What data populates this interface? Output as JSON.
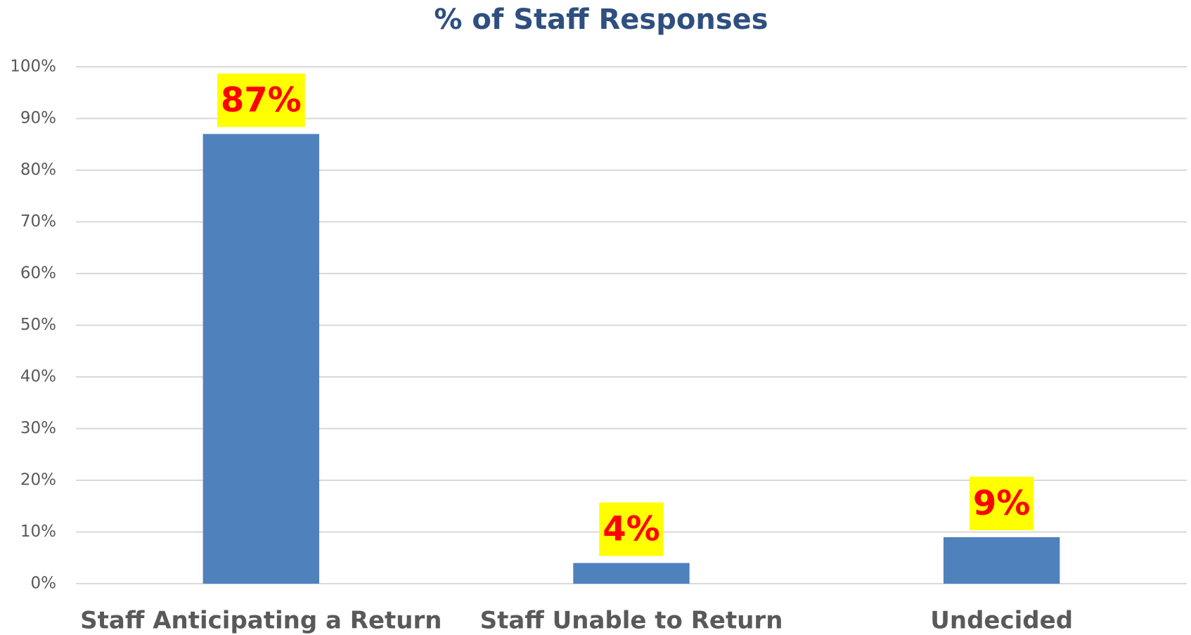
{
  "chart_data": {
    "type": "bar",
    "title": "% of Staff Responses",
    "categories": [
      "Staff Anticipating a Return",
      "Staff Unable to Return",
      "Undecided"
    ],
    "values": [
      87,
      4,
      9
    ],
    "value_labels": [
      "87%",
      "4%",
      "9%"
    ],
    "color": "#4f81bd",
    "ylim": [
      0,
      100
    ],
    "yticks": [
      {
        "value": 0,
        "label": "0%"
      },
      {
        "value": 10,
        "label": "10%"
      },
      {
        "value": 20,
        "label": "20%"
      },
      {
        "value": 30,
        "label": "30%"
      },
      {
        "value": 40,
        "label": "40%"
      },
      {
        "value": 50,
        "label": "50%"
      },
      {
        "value": 60,
        "label": "60%"
      },
      {
        "value": 70,
        "label": "70%"
      },
      {
        "value": 80,
        "label": "80%"
      },
      {
        "value": 90,
        "label": "90%"
      },
      {
        "value": 100,
        "label": "100%"
      }
    ],
    "grid": true
  }
}
